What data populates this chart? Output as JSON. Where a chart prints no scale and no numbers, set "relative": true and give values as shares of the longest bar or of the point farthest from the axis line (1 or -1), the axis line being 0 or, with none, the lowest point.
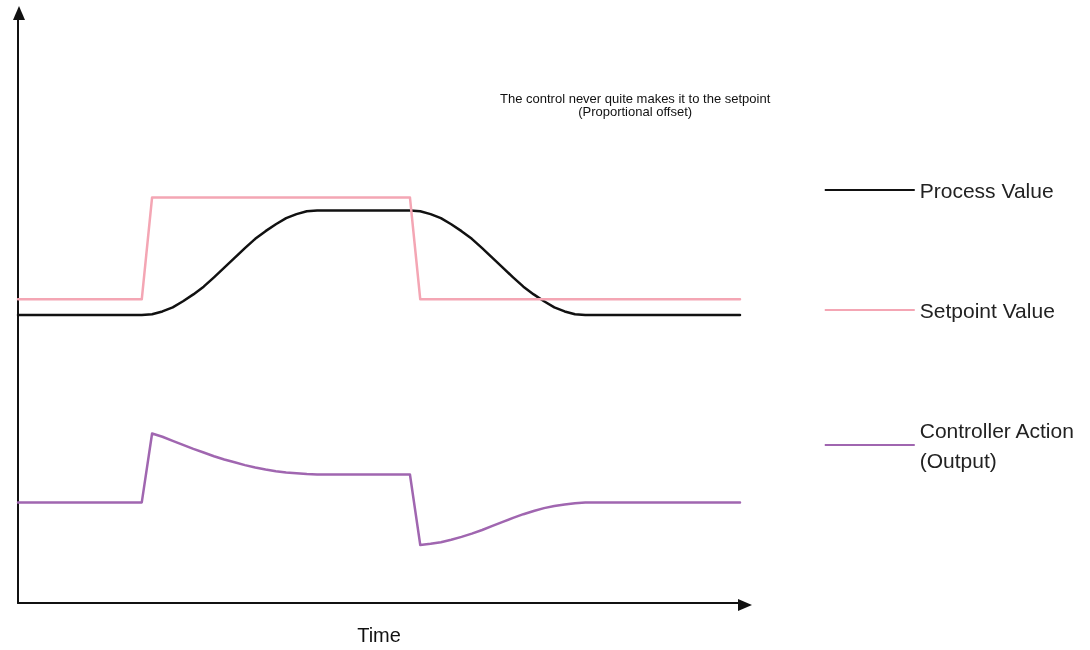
{
  "chart_data": {
    "type": "line",
    "relative": true,
    "xlabel": "Time",
    "annotations": [
      "The control never quite makes it to the setpoint\n(Proportional offset)"
    ],
    "legend": "right",
    "marker": "none",
    "line_style": "solid",
    "grid": false,
    "categories": [
      null,
      null,
      null,
      null,
      null,
      null,
      null,
      null,
      null,
      null,
      null,
      null,
      null,
      null,
      null,
      null,
      null,
      null,
      null,
      null,
      null,
      null,
      null,
      null,
      null,
      null,
      null,
      null,
      null,
      null,
      null,
      null,
      null,
      null,
      null,
      null,
      null,
      null,
      null,
      null,
      null,
      null,
      null,
      null,
      null,
      null,
      null,
      null,
      null,
      null,
      null,
      null,
      null,
      null,
      null,
      null,
      null,
      null,
      null,
      null,
      null,
      null,
      null,
      null,
      null,
      null,
      null,
      null,
      null,
      null,
      null
    ],
    "series": [
      {
        "name": "Process Value",
        "color": "#111111",
        "values": [
          0.71,
          0.71,
          0.71,
          0.71,
          0.71,
          0.71,
          0.71,
          0.71,
          0.71,
          0.71,
          0.71,
          0.71,
          0.71,
          0.712,
          0.719,
          0.729,
          0.744,
          0.761,
          0.78,
          0.803,
          0.827,
          0.851,
          0.875,
          0.898,
          0.917,
          0.934,
          0.949,
          0.959,
          0.966,
          0.968,
          0.968,
          0.968,
          0.968,
          0.968,
          0.968,
          0.968,
          0.968,
          0.968,
          0.968,
          0.966,
          0.959,
          0.949,
          0.934,
          0.917,
          0.898,
          0.875,
          0.851,
          0.827,
          0.803,
          0.78,
          0.761,
          0.744,
          0.729,
          0.719,
          0.712,
          0.71,
          0.71,
          0.71,
          0.71,
          0.71,
          0.71,
          0.71,
          0.71,
          0.71,
          0.71,
          0.71,
          0.71,
          0.71,
          0.71,
          0.71,
          0.71
        ]
      },
      {
        "name": "Setpoint Value",
        "color": "#f4a6b4",
        "values": [
          0.749,
          0.749,
          0.749,
          0.749,
          0.749,
          0.749,
          0.749,
          0.749,
          0.749,
          0.749,
          0.749,
          0.749,
          0.749,
          1,
          1,
          1,
          1,
          1,
          1,
          1,
          1,
          1,
          1,
          1,
          1,
          1,
          1,
          1,
          1,
          1,
          1,
          1,
          1,
          1,
          1,
          1,
          1,
          1,
          1,
          0.749,
          0.749,
          0.749,
          0.749,
          0.749,
          0.749,
          0.749,
          0.749,
          0.749,
          0.749,
          0.749,
          0.749,
          0.749,
          0.749,
          0.749,
          0.749,
          0.749,
          0.749,
          0.749,
          0.749,
          0.749,
          0.749,
          0.749,
          0.749,
          0.749,
          0.749,
          0.749,
          0.749,
          0.749,
          0.749,
          0.749,
          0.749
        ]
      },
      {
        "name": "Controller Action\n(Output)",
        "color": "#a066b0",
        "values": [
          0.248,
          0.248,
          0.248,
          0.248,
          0.248,
          0.248,
          0.248,
          0.248,
          0.248,
          0.248,
          0.248,
          0.248,
          0.248,
          0.418,
          0.41,
          0.4,
          0.39,
          0.38,
          0.371,
          0.362,
          0.354,
          0.347,
          0.34,
          0.334,
          0.329,
          0.325,
          0.322,
          0.32,
          0.318,
          0.317,
          0.317,
          0.317,
          0.317,
          0.317,
          0.317,
          0.317,
          0.317,
          0.317,
          0.317,
          0.143,
          0.146,
          0.15,
          0.156,
          0.163,
          0.171,
          0.18,
          0.19,
          0.2,
          0.21,
          0.219,
          0.227,
          0.234,
          0.239,
          0.243,
          0.246,
          0.248,
          0.248,
          0.248,
          0.248,
          0.248,
          0.248,
          0.248,
          0.248,
          0.248,
          0.248,
          0.248,
          0.248,
          0.248,
          0.248,
          0.248,
          0.248
        ]
      }
    ]
  }
}
